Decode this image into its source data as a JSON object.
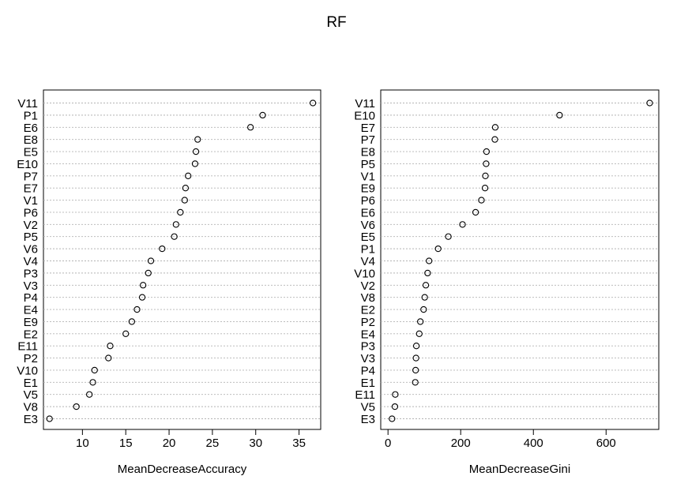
{
  "title": "RF",
  "chart_data": [
    {
      "type": "scatter",
      "xlabel": "MeanDecreaseAccuracy",
      "xlim": [
        5.5,
        37.5
      ],
      "xticks": [
        10,
        15,
        20,
        25,
        30,
        35
      ],
      "grid": "dotted-horizontal",
      "categories": [
        "V11",
        "P1",
        "E6",
        "E8",
        "E5",
        "E10",
        "P7",
        "E7",
        "V1",
        "P6",
        "V2",
        "P5",
        "V6",
        "V4",
        "P3",
        "V3",
        "P4",
        "E4",
        "E9",
        "E2",
        "E11",
        "P2",
        "V10",
        "E1",
        "V5",
        "V8",
        "E3"
      ],
      "values": [
        36.6,
        30.8,
        29.4,
        23.3,
        23.1,
        23.0,
        22.2,
        21.9,
        21.8,
        21.3,
        20.8,
        20.6,
        19.2,
        17.9,
        17.6,
        17.0,
        16.9,
        16.3,
        15.7,
        15.0,
        13.2,
        13.0,
        11.4,
        11.2,
        10.8,
        9.3,
        6.2
      ]
    },
    {
      "type": "scatter",
      "xlabel": "MeanDecreaseGini",
      "xlim": [
        -20,
        745
      ],
      "xticks": [
        0,
        200,
        400,
        600
      ],
      "grid": "dotted-horizontal",
      "categories": [
        "V11",
        "E10",
        "E7",
        "P7",
        "E8",
        "P5",
        "V1",
        "E9",
        "P6",
        "E6",
        "V6",
        "E5",
        "P1",
        "V4",
        "V10",
        "V2",
        "V8",
        "E2",
        "P2",
        "E4",
        "P3",
        "V3",
        "P4",
        "E1",
        "E11",
        "V5",
        "E3"
      ],
      "values": [
        720,
        472,
        295,
        294,
        271,
        270,
        268,
        267,
        257,
        241,
        205,
        166,
        138,
        113,
        109,
        104,
        101,
        98,
        89,
        86,
        78,
        77,
        76,
        75,
        20,
        19,
        11
      ]
    }
  ]
}
